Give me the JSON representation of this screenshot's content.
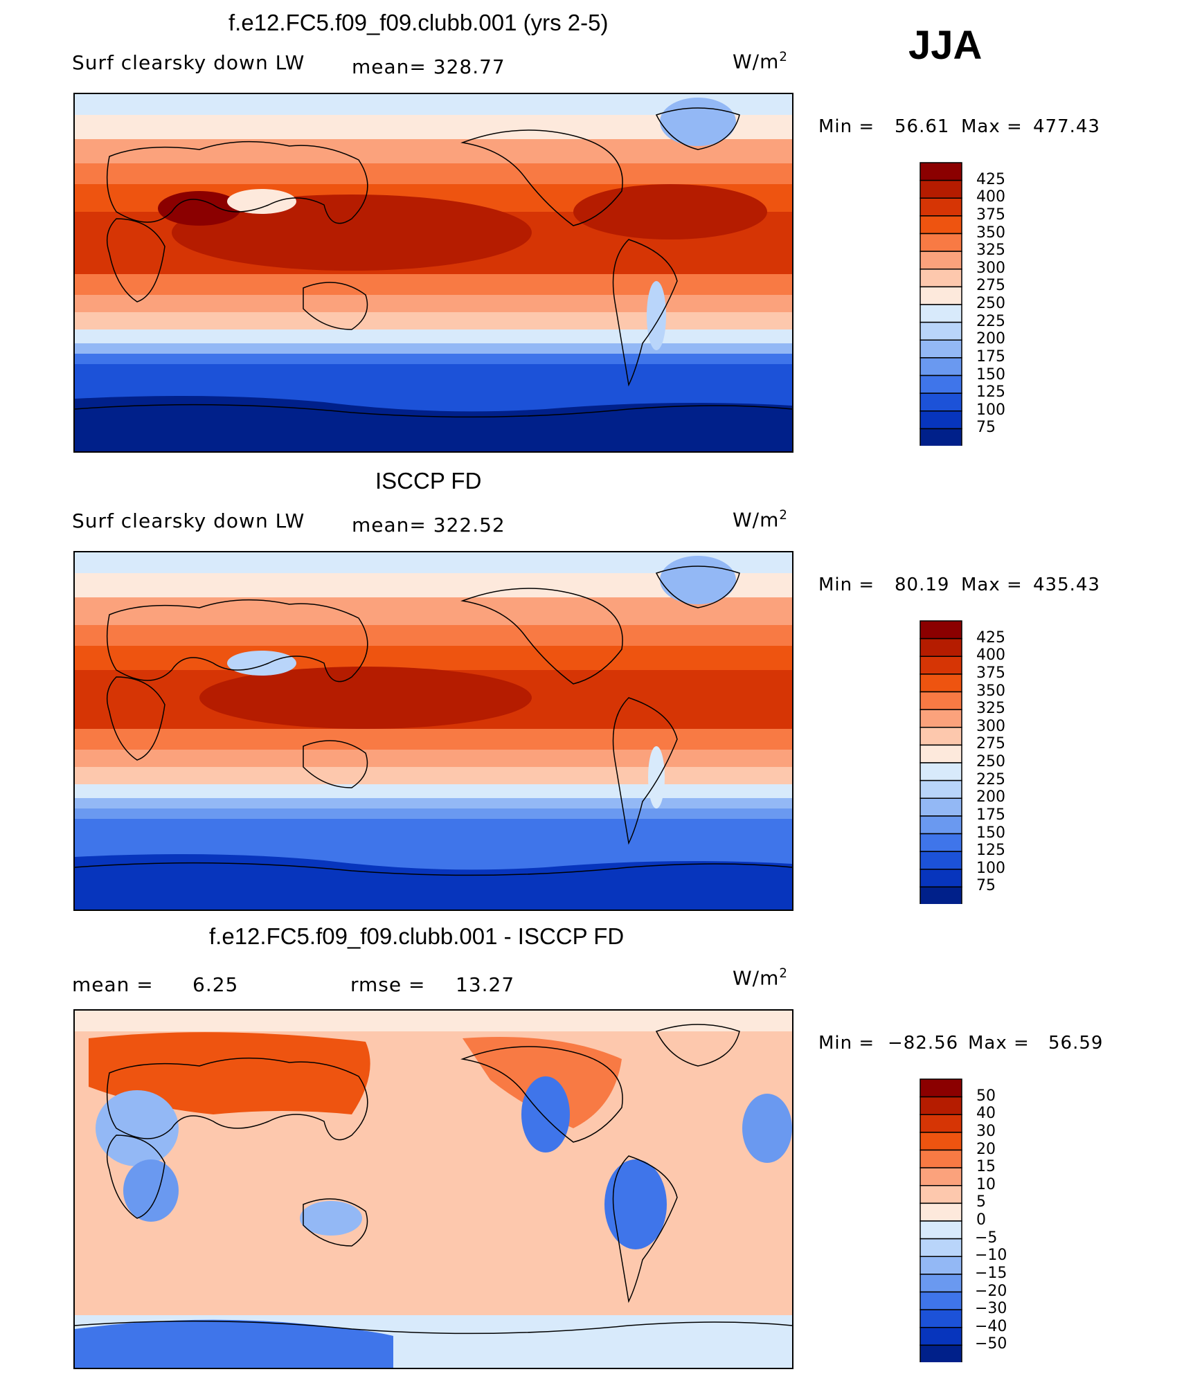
{
  "season": "JJA",
  "panels": [
    {
      "title": "f.e12.FC5.f09_f09.clubb.001 (yrs 2-5)",
      "left_label": "Surf clearsky down LW",
      "stat1": "mean= 328.77",
      "stat2": "",
      "units": "W/m",
      "units_sup": "2",
      "min_label": "Min =",
      "min_value": "56.61",
      "max_label": "Max =",
      "max_value": "477.43"
    },
    {
      "title": "ISCCP FD",
      "left_label": "Surf clearsky down LW",
      "stat1": "mean= 322.52",
      "stat2": "",
      "units": "W/m",
      "units_sup": "2",
      "min_label": "Min =",
      "min_value": "80.19",
      "max_label": "Max =",
      "max_value": "435.43"
    },
    {
      "title": "f.e12.FC5.f09_f09.clubb.001 - ISCCP FD",
      "left_label": "mean =",
      "left_value": "6.25",
      "stat1": "rmse =",
      "stat2": "13.27",
      "units": "W/m",
      "units_sup": "2",
      "min_label": "Min =",
      "min_value": "−82.56",
      "max_label": "Max =",
      "max_value": "56.59"
    }
  ],
  "chart_data": [
    {
      "type": "heatmap",
      "title": "f.e12.FC5.f09_f09.clubb.001 (yrs 2-5)",
      "variable": "Surf clearsky down LW",
      "units": "W/m2",
      "mean": 328.77,
      "min": 56.61,
      "max": 477.43,
      "colorbar_levels": [
        "425",
        "400",
        "375",
        "350",
        "325",
        "300",
        "275",
        "250",
        "225",
        "200",
        "175",
        "150",
        "125",
        "100",
        "75"
      ],
      "colorbar_colors": [
        "#8b0000",
        "#b51c00",
        "#d63505",
        "#ee5410",
        "#f87a44",
        "#fba27c",
        "#fdc8ad",
        "#fde9dc",
        "#d8eafb",
        "#b9d5fa",
        "#93b8f5",
        "#6a99f0",
        "#3f75ea",
        "#1c52d8",
        "#0735bd",
        "#00208a"
      ]
    },
    {
      "type": "heatmap",
      "title": "ISCCP FD",
      "variable": "Surf clearsky down LW",
      "units": "W/m2",
      "mean": 322.52,
      "min": 80.19,
      "max": 435.43,
      "colorbar_levels": [
        "425",
        "400",
        "375",
        "350",
        "325",
        "300",
        "275",
        "250",
        "225",
        "200",
        "175",
        "150",
        "125",
        "100",
        "75"
      ],
      "colorbar_colors": [
        "#8b0000",
        "#b51c00",
        "#d63505",
        "#ee5410",
        "#f87a44",
        "#fba27c",
        "#fdc8ad",
        "#fde9dc",
        "#d8eafb",
        "#b9d5fa",
        "#93b8f5",
        "#6a99f0",
        "#3f75ea",
        "#1c52d8",
        "#0735bd",
        "#00208a"
      ]
    },
    {
      "type": "heatmap",
      "title": "f.e12.FC5.f09_f09.clubb.001 - ISCCP FD",
      "units": "W/m2",
      "mean": 6.25,
      "rmse": 13.27,
      "min": -82.56,
      "max": 56.59,
      "colorbar_levels": [
        "50",
        "40",
        "30",
        "20",
        "15",
        "10",
        "5",
        "0",
        "−5",
        "−10",
        "−15",
        "−20",
        "−30",
        "−40",
        "−50"
      ],
      "colorbar_colors": [
        "#8b0000",
        "#b51c00",
        "#d63505",
        "#ee5410",
        "#f87a44",
        "#fba27c",
        "#fdc8ad",
        "#fde9dc",
        "#d8eafb",
        "#b9d5fa",
        "#93b8f5",
        "#6a99f0",
        "#3f75ea",
        "#1c52d8",
        "#0735bd",
        "#00208a"
      ]
    }
  ]
}
